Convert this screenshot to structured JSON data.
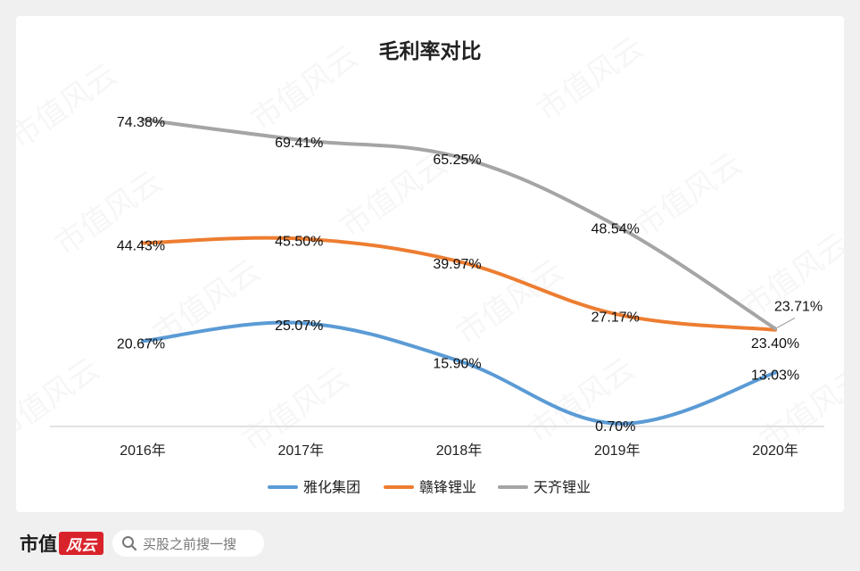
{
  "chart_data": {
    "type": "line",
    "title": "毛利率对比",
    "categories": [
      "2016年",
      "2017年",
      "2018年",
      "2019年",
      "2020年"
    ],
    "series": [
      {
        "name": "雅化集团",
        "color": "#5b9bd5",
        "values": [
          20.67,
          25.07,
          15.9,
          0.7,
          13.03
        ],
        "labels": [
          "20.67%",
          "25.07%",
          "15.90%",
          "0.70%",
          "13.03%"
        ]
      },
      {
        "name": "赣锋锂业",
        "color": "#ed7d31",
        "values": [
          44.43,
          45.5,
          39.97,
          27.17,
          23.4
        ],
        "labels": [
          "44.43%",
          "45.50%",
          "39.97%",
          "27.17%",
          "23.40%"
        ]
      },
      {
        "name": "天齐锂业",
        "color": "#a5a5a5",
        "values": [
          74.38,
          69.41,
          65.25,
          48.54,
          23.71
        ],
        "labels": [
          "74.38%",
          "69.41%",
          "65.25%",
          "48.54%",
          "23.71%"
        ]
      }
    ],
    "ylim": [
      0,
      80
    ],
    "xlabel": "",
    "ylabel": "",
    "grid": false,
    "legend": "bottom"
  },
  "watermark": "市值风云",
  "footer": {
    "brand": "市值",
    "brand_seal": "风云",
    "search_placeholder": "买股之前搜一搜"
  }
}
